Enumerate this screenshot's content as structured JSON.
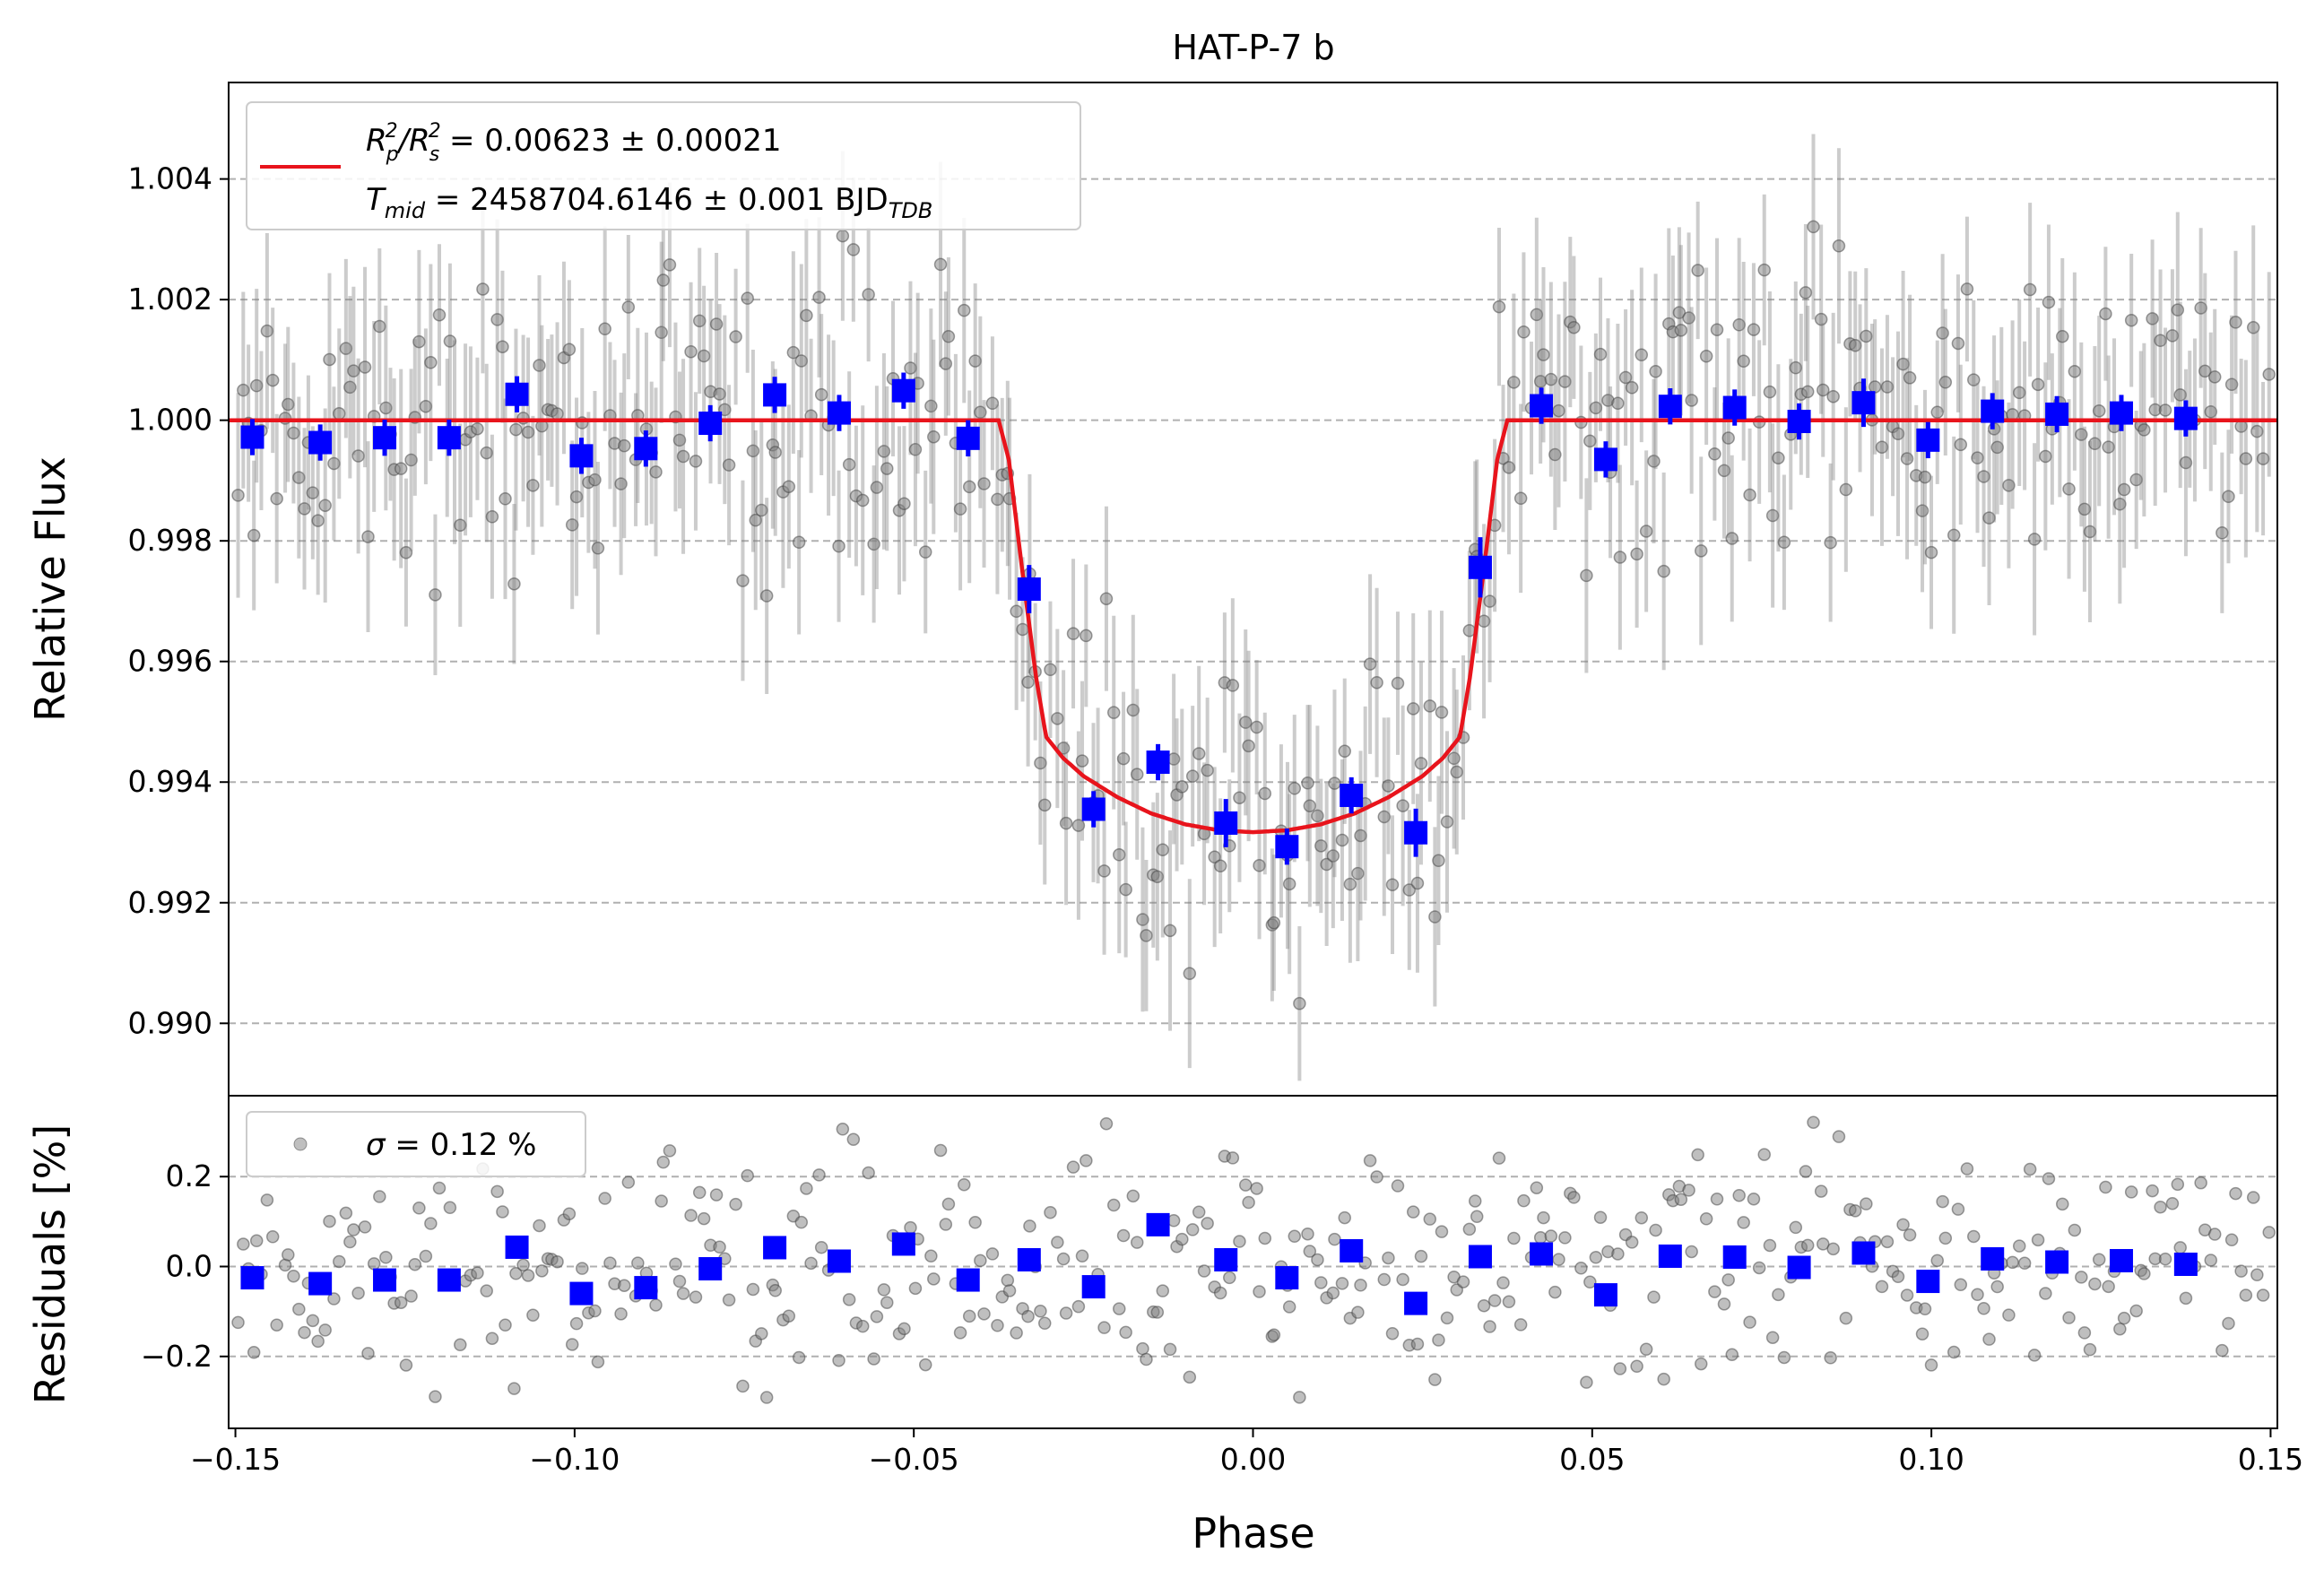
{
  "chart_data": [
    {
      "type": "scatter",
      "panel": "top",
      "title": "HAT-P-7 b",
      "xlabel": "",
      "ylabel": "Relative Flux",
      "xlim": [
        -0.151,
        0.151
      ],
      "ylim": [
        0.9888,
        1.0056
      ],
      "yticks": [
        "0.990",
        "0.992",
        "0.994",
        "0.996",
        "0.998",
        "1.000",
        "1.002",
        "1.004"
      ],
      "ytick_values": [
        0.99,
        0.992,
        0.994,
        0.996,
        0.998,
        1.0,
        1.002,
        1.004
      ],
      "grid": "horizontal dashed",
      "legend_position": "top-left",
      "legend": {
        "line1_prefix": "R",
        "line1_sub1": "p",
        "line1_mid": "/R",
        "line1_sub2": "s",
        "line1_sup": "2",
        "line1_value": " = 0.00623 ± 0.00021",
        "line2_prefix": "T",
        "line2_sub": "mid",
        "line2_value": " = 2458704.6146 ± 0.001 BJD",
        "line2_unit_sub": "TDB"
      },
      "model_color": "#e8141c",
      "model": {
        "name": "transit model",
        "baseline": 1.0,
        "x": [
          -0.151,
          -0.0375,
          -0.036,
          -0.034,
          -0.032,
          -0.0305,
          -0.028,
          -0.025,
          -0.02,
          -0.015,
          -0.01,
          -0.005,
          0.0,
          0.005,
          0.01,
          0.015,
          0.02,
          0.025,
          0.028,
          0.0305,
          0.032,
          0.034,
          0.036,
          0.0375,
          0.151
        ],
        "y": [
          1.0,
          1.0,
          0.99935,
          0.9975,
          0.99575,
          0.99475,
          0.9944,
          0.9941,
          0.99375,
          0.99348,
          0.9933,
          0.9932,
          0.99317,
          0.9932,
          0.9933,
          0.99348,
          0.99375,
          0.9941,
          0.9944,
          0.99475,
          0.99575,
          0.9975,
          0.99935,
          1.0,
          1.0
        ]
      },
      "binned_color": "#0000ff",
      "binned": {
        "x": [
          -0.1475,
          -0.1375,
          -0.128,
          -0.1185,
          -0.1085,
          -0.099,
          -0.0895,
          -0.08,
          -0.0705,
          -0.061,
          -0.0515,
          -0.042,
          -0.033,
          -0.0235,
          -0.014,
          -0.004,
          0.005,
          0.0145,
          0.024,
          0.0335,
          0.0425,
          0.052,
          0.0615,
          0.071,
          0.0805,
          0.09,
          0.0995,
          0.109,
          0.1185,
          0.128,
          0.1375
        ],
        "y": [
          0.99972,
          0.99963,
          0.99971,
          0.99971,
          1.00043,
          0.99941,
          0.99953,
          0.99995,
          1.00042,
          1.00012,
          1.00049,
          0.9997,
          0.9972,
          0.99355,
          0.99433,
          0.99332,
          0.99293,
          0.99378,
          0.99316,
          0.99756,
          1.00024,
          0.99935,
          1.00023,
          1.00021,
          0.99998,
          1.00029,
          0.99967,
          1.00015,
          1.0001,
          1.00012,
          1.00003
        ],
        "err": [
          0.0003,
          0.0003,
          0.0003,
          0.0003,
          0.0003,
          0.0003,
          0.0003,
          0.0003,
          0.0003,
          0.0003,
          0.0003,
          0.0003,
          0.0004,
          0.0003,
          0.0003,
          0.0004,
          0.0003,
          0.0003,
          0.0004,
          0.0005,
          0.0003,
          0.0003,
          0.0003,
          0.0003,
          0.0003,
          0.0004,
          0.0003,
          0.0003,
          0.0003,
          0.0003,
          0.0003
        ]
      },
      "raw_points_color": "#808080",
      "raw_points_note_count": 400
    },
    {
      "type": "scatter",
      "panel": "bottom",
      "xlabel": "Phase",
      "ylabel": "Residuals [%]",
      "xlim": [
        -0.151,
        0.151
      ],
      "ylim": [
        -0.36,
        0.38
      ],
      "yticks": [
        "−0.2",
        "0.0",
        "0.2"
      ],
      "ytick_values": [
        -0.2,
        0.0,
        0.2
      ],
      "xticks": [
        "−0.15",
        "−0.10",
        "−0.05",
        "0.00",
        "0.05",
        "0.10",
        "0.15"
      ],
      "xtick_values": [
        -0.15,
        -0.1,
        -0.05,
        0.0,
        0.05,
        0.1,
        0.15
      ],
      "grid": "horizontal dashed",
      "legend_position": "top-left",
      "legend": {
        "sigma_symbol": "σ",
        "sigma_text": " = 0.12 %"
      },
      "binned_residuals": {
        "x": [
          -0.1475,
          -0.1375,
          -0.128,
          -0.1185,
          -0.1085,
          -0.099,
          -0.0895,
          -0.08,
          -0.0705,
          -0.061,
          -0.0515,
          -0.042,
          -0.033,
          -0.0235,
          -0.014,
          -0.004,
          0.005,
          0.0145,
          0.024,
          0.0335,
          0.0425,
          0.052,
          0.0615,
          0.071,
          0.0805,
          0.09,
          0.0995,
          0.109,
          0.1185,
          0.128,
          0.1375
        ],
        "y": [
          -0.025,
          -0.038,
          -0.03,
          -0.03,
          0.043,
          -0.06,
          -0.047,
          -0.005,
          0.042,
          0.012,
          0.05,
          -0.03,
          0.015,
          -0.045,
          0.093,
          0.015,
          -0.025,
          0.035,
          -0.082,
          0.022,
          0.028,
          -0.063,
          0.023,
          0.021,
          -0.002,
          0.03,
          -0.033,
          0.017,
          0.01,
          0.013,
          0.005
        ]
      }
    }
  ]
}
